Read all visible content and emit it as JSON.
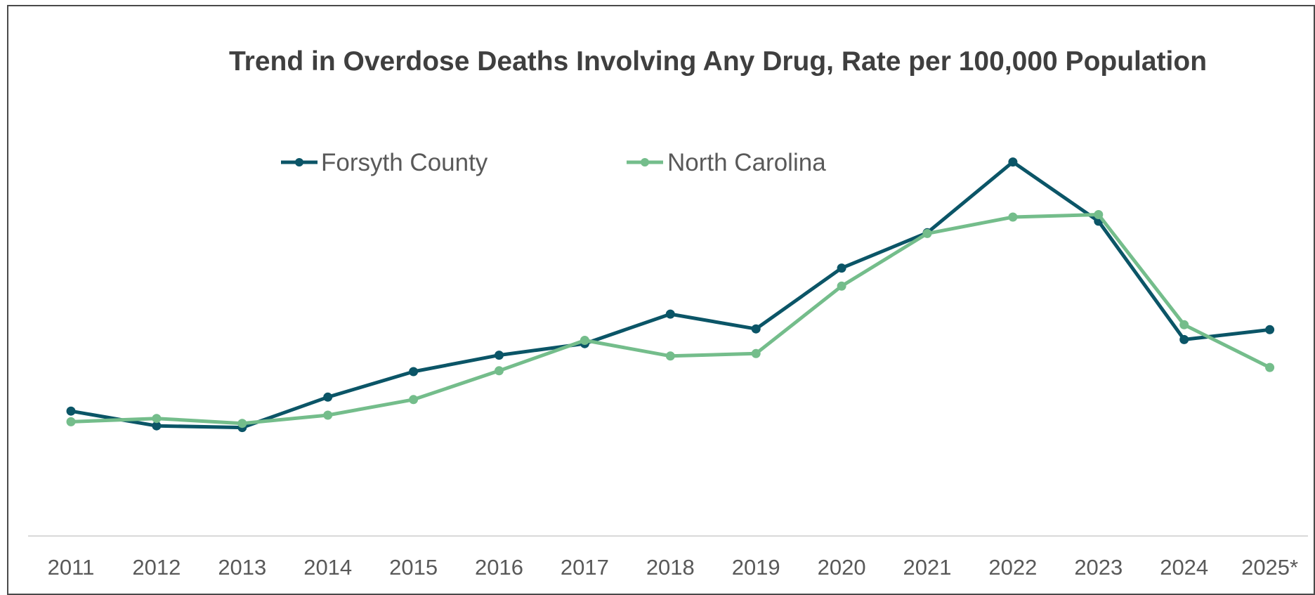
{
  "chart_data": {
    "type": "line",
    "title": "Trend in Overdose Deaths Involving Any Drug, Rate per 100,000 Population",
    "xlabel": "",
    "ylabel": "",
    "categories": [
      "2011",
      "2012",
      "2013",
      "2014",
      "2015",
      "2016",
      "2017",
      "2018",
      "2019",
      "2020",
      "2021",
      "2022",
      "2023",
      "2024",
      "2025*"
    ],
    "ylim": [
      0,
      52
    ],
    "y_axis_labels_shown": false,
    "grid": false,
    "legend_position": "top",
    "series": [
      {
        "name": "Forsyth County",
        "color": "#0b5567",
        "values": [
          15.2,
          13.4,
          13.2,
          16.9,
          20.0,
          22.0,
          23.4,
          27.0,
          25.2,
          32.6,
          36.9,
          45.5,
          38.3,
          23.9,
          25.1
        ]
      },
      {
        "name": "North Carolina",
        "color": "#74bd8b",
        "values": [
          13.9,
          14.3,
          13.7,
          14.7,
          16.6,
          20.1,
          23.8,
          21.9,
          22.2,
          30.4,
          36.8,
          38.8,
          39.1,
          25.7,
          20.5
        ]
      }
    ]
  }
}
